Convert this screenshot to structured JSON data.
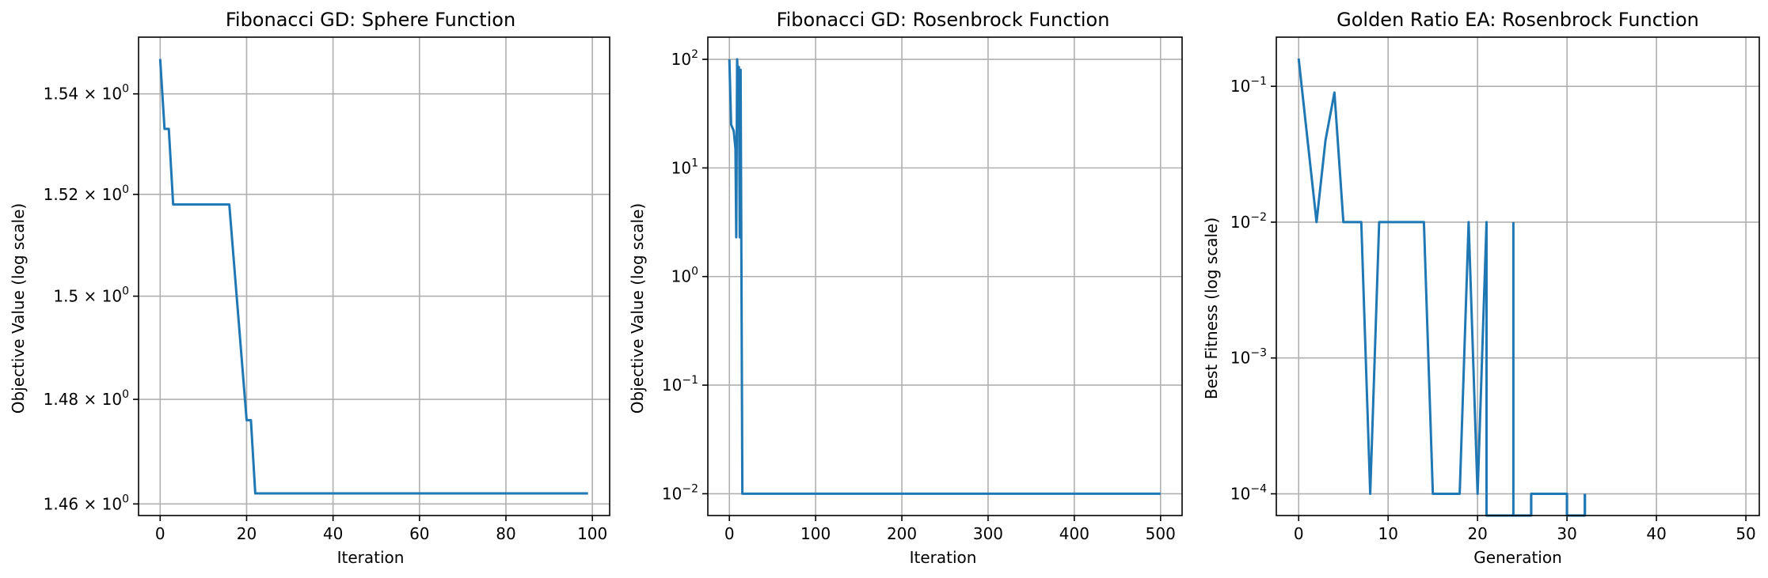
{
  "chart_data": [
    {
      "type": "line",
      "title": "Fibonacci GD: Sphere Function",
      "xlabel": "Iteration",
      "ylabel": "Objective Value (log scale)",
      "yscale": "log",
      "xlim": [
        -5,
        104
      ],
      "ylim": [
        1.4578,
        1.5514
      ],
      "grid": true,
      "color": "#1f77b4",
      "xticks": [
        0,
        20,
        40,
        60,
        80,
        100
      ],
      "xtick_labels": [
        "0",
        "20",
        "40",
        "60",
        "80",
        "100"
      ],
      "yticks": [
        1.46,
        1.48,
        1.5,
        1.52,
        1.54
      ],
      "ytick_labels": [
        {
          "mantissa": "1.46",
          "exp": "0"
        },
        {
          "mantissa": "1.48",
          "exp": "0"
        },
        {
          "mantissa": "1.5",
          "exp": "0"
        },
        {
          "mantissa": "1.52",
          "exp": "0"
        },
        {
          "mantissa": "1.54",
          "exp": "0"
        }
      ],
      "x": [
        0,
        1,
        2,
        3,
        16,
        20,
        21,
        22,
        99
      ],
      "y": [
        1.547,
        1.533,
        1.533,
        1.518,
        1.518,
        1.476,
        1.476,
        1.462,
        1.462
      ]
    },
    {
      "type": "line",
      "title": "Fibonacci GD: Rosenbrock Function",
      "xlabel": "Iteration",
      "ylabel": "Objective Value (log scale)",
      "yscale": "log",
      "xlim": [
        -25,
        525
      ],
      "ylim": [
        0.0063,
        160
      ],
      "grid": true,
      "color": "#1f77b4",
      "xticks": [
        0,
        100,
        200,
        300,
        400,
        500
      ],
      "xtick_labels": [
        "0",
        "100",
        "200",
        "300",
        "400",
        "500"
      ],
      "yticks": [
        0.01,
        0.1,
        1,
        10,
        100
      ],
      "ytick_labels": [
        {
          "mantissa": "10",
          "exp": "−2"
        },
        {
          "mantissa": "10",
          "exp": "−1"
        },
        {
          "mantissa": "10",
          "exp": "0"
        },
        {
          "mantissa": "10",
          "exp": "1"
        },
        {
          "mantissa": "10",
          "exp": "2"
        }
      ],
      "x": [
        0,
        2,
        5,
        7,
        8,
        9,
        10,
        11,
        12,
        13,
        15,
        30,
        60,
        500
      ],
      "y": [
        100,
        25,
        22,
        15,
        2.3,
        100,
        60,
        85,
        2.3,
        80,
        0.01,
        0.01,
        0.01,
        0.01
      ]
    },
    {
      "type": "line",
      "title": "Golden Ratio EA: Rosenbrock Function",
      "xlabel": "Generation",
      "ylabel": "Best Fitness (log scale)",
      "yscale": "log",
      "xlim": [
        -2.5,
        51.5
      ],
      "ylim": [
        6.92e-05,
        0.23
      ],
      "grid": true,
      "color": "#1f77b4",
      "xticks": [
        0,
        10,
        20,
        30,
        40,
        50
      ],
      "xtick_labels": [
        "0",
        "10",
        "20",
        "30",
        "40",
        "50"
      ],
      "yticks": [
        0.0001,
        0.001,
        0.01,
        0.1
      ],
      "ytick_labels": [
        {
          "mantissa": "10",
          "exp": "−4"
        },
        {
          "mantissa": "10",
          "exp": "−3"
        },
        {
          "mantissa": "10",
          "exp": "−2"
        },
        {
          "mantissa": "10",
          "exp": "−1"
        }
      ],
      "x": [
        0,
        2,
        3,
        4,
        5,
        7,
        8,
        9,
        14,
        15,
        18,
        19,
        20,
        20.999,
        21,
        21,
        26,
        26,
        28,
        30,
        30,
        32,
        32
      ],
      "y": [
        0.16,
        0.01,
        0.04,
        0.09,
        0.01,
        0.01,
        0.0001,
        0.01,
        0.01,
        0.0001,
        0.0001,
        0.01,
        0.0001,
        0.01,
        0.01,
        6.92e-05,
        6.92e-05,
        0.0001,
        0.0001,
        0.0001,
        6.92e-05,
        6.92e-05,
        0.0001
      ],
      "breaks": [
        {
          "x": [
            24,
            24
          ],
          "y": [
            0.01,
            6.92e-05
          ]
        },
        {
          "x": [
            26,
            26
          ],
          "y": [
            0.0001,
            6.92e-05
          ]
        },
        {
          "x": [
            30,
            30
          ],
          "y": [
            0.0001,
            6.92e-05
          ]
        },
        {
          "x": [
            32,
            32
          ],
          "y": [
            0.0001,
            6.92e-05
          ]
        }
      ]
    }
  ]
}
